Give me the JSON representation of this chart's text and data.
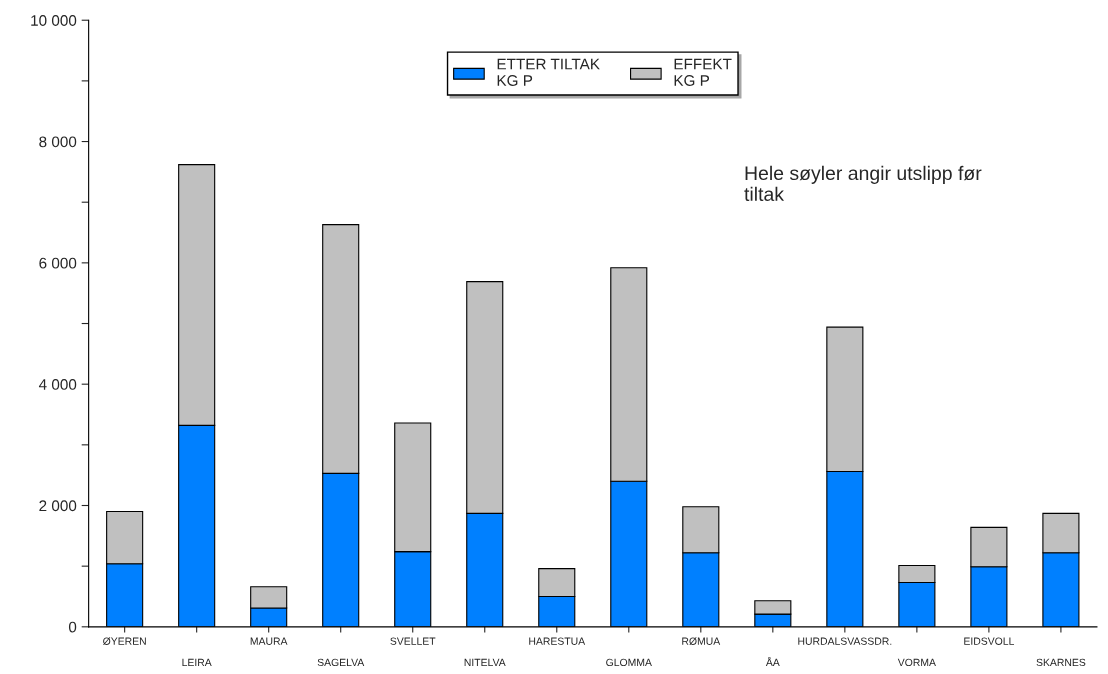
{
  "chart_data": {
    "type": "bar",
    "stacked": true,
    "categories": [
      "ØYEREN",
      "LEIRA",
      "MAURA",
      "SAGELVA",
      "SVELLET",
      "NITELVA",
      "HARESTUA",
      "GLOMMA",
      "RØMUA",
      "ÅA",
      "HURDALSVASSDR.",
      "VORMA",
      "EIDSVOLL",
      "SKARNES"
    ],
    "series": [
      {
        "name": "ETTER TILTAK\nKG P",
        "color": "#0080ff",
        "values": [
          1040,
          3320,
          310,
          2530,
          1240,
          1870,
          500,
          2400,
          1220,
          210,
          2560,
          730,
          990,
          1220
        ]
      },
      {
        "name": "EFFEKT\nKG P",
        "color": "#c0c0c0",
        "values": [
          860,
          4300,
          350,
          4100,
          2120,
          3820,
          460,
          3520,
          760,
          220,
          2380,
          280,
          650,
          650
        ]
      }
    ],
    "ylim": [
      0,
      10000
    ],
    "yticks": [
      0,
      {
        "value": 1000,
        "label": null
      },
      {
        "value": 2000,
        "label": "2 000"
      },
      {
        "value": 3000,
        "label": null
      },
      {
        "value": 4000,
        "label": "4 000"
      },
      {
        "value": 5000,
        "label": null
      },
      {
        "value": 6000,
        "label": "6 000"
      },
      {
        "value": 7000,
        "label": null
      },
      {
        "value": 8000,
        "label": "8 000"
      },
      {
        "value": 9000,
        "label": null
      },
      {
        "value": 10000,
        "label": "10 000"
      }
    ],
    "annotations": [
      "Hele søyler angir utslipp før\ntiltak"
    ],
    "legend": "top",
    "grid": false
  }
}
